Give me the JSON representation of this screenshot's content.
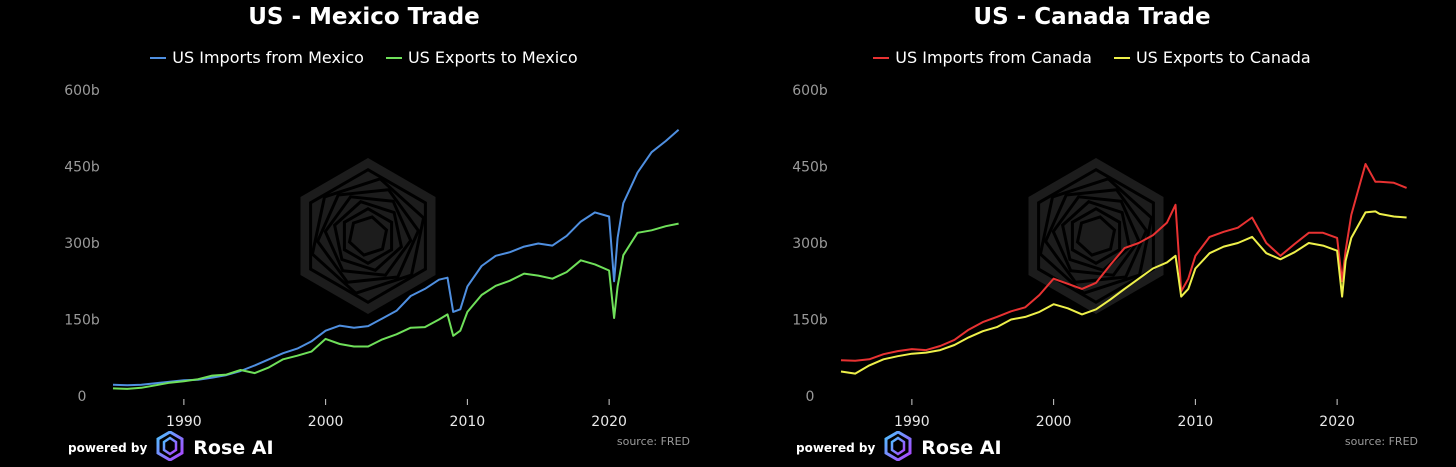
{
  "colors": {
    "mexico_imports": "#4f8fe0",
    "mexico_exports": "#6fe05a",
    "canada_imports": "#e83232",
    "canada_exports": "#eef04a",
    "watermark": "#1c1c1c"
  },
  "icons": {
    "watermark": "rose-ai-hexagon-logo",
    "brand": "rose-ai-logo-icon"
  },
  "footer": {
    "powered_by": "powered by",
    "brand": "Rose AI",
    "source": "source: FRED"
  },
  "chart_data": [
    {
      "type": "line",
      "title": "US - Mexico Trade",
      "xlim": [
        1985,
        2025
      ],
      "ylim": [
        0,
        600
      ],
      "y_ticks": [
        "0",
        "150b",
        "300b",
        "450b",
        "600b"
      ],
      "y_tick_values": [
        0,
        150,
        300,
        450,
        600
      ],
      "x_ticks": [
        "1990",
        "2000",
        "2010",
        "2020"
      ],
      "x_tick_values": [
        1990,
        2000,
        2010,
        2020
      ],
      "legend_position": "top-center",
      "grid": false,
      "series": [
        {
          "name": "US Imports from Mexico",
          "color_key": "mexico_imports",
          "points": [
            [
              1985,
              22
            ],
            [
              1986,
              21
            ],
            [
              1987,
              22
            ],
            [
              1988,
              25
            ],
            [
              1989,
              28
            ],
            [
              1990,
              31
            ],
            [
              1991,
              32
            ],
            [
              1992,
              36
            ],
            [
              1993,
              41
            ],
            [
              1994,
              49
            ],
            [
              1995,
              60
            ],
            [
              1996,
              72
            ],
            [
              1997,
              84
            ],
            [
              1998,
              93
            ],
            [
              1999,
              107
            ],
            [
              2000,
              128
            ],
            [
              2001,
              138
            ],
            [
              2002,
              134
            ],
            [
              2003,
              137
            ],
            [
              2004,
              152
            ],
            [
              2005,
              167
            ],
            [
              2006,
              196
            ],
            [
              2007,
              210
            ],
            [
              2008,
              228
            ],
            [
              2008.6,
              232
            ],
            [
              2009,
              165
            ],
            [
              2009.5,
              170
            ],
            [
              2010,
              215
            ],
            [
              2011,
              255
            ],
            [
              2012,
              275
            ],
            [
              2013,
              282
            ],
            [
              2014,
              293
            ],
            [
              2015,
              299
            ],
            [
              2016,
              295
            ],
            [
              2017,
              314
            ],
            [
              2018,
              342
            ],
            [
              2019,
              360
            ],
            [
              2020,
              352
            ],
            [
              2020.35,
              225
            ],
            [
              2020.6,
              310
            ],
            [
              2021,
              378
            ],
            [
              2022,
              438
            ],
            [
              2023,
              478
            ],
            [
              2024,
              500
            ],
            [
              2024.9,
              522
            ]
          ]
        },
        {
          "name": "US Exports to Mexico",
          "color_key": "mexico_exports",
          "points": [
            [
              1985,
              15
            ],
            [
              1986,
              14
            ],
            [
              1987,
              16
            ],
            [
              1988,
              21
            ],
            [
              1989,
              26
            ],
            [
              1990,
              29
            ],
            [
              1991,
              33
            ],
            [
              1992,
              40
            ],
            [
              1993,
              42
            ],
            [
              1994,
              51
            ],
            [
              1995,
              45
            ],
            [
              1996,
              56
            ],
            [
              1997,
              72
            ],
            [
              1998,
              79
            ],
            [
              1999,
              87
            ],
            [
              2000,
              112
            ],
            [
              2001,
              102
            ],
            [
              2002,
              97
            ],
            [
              2003,
              97
            ],
            [
              2004,
              111
            ],
            [
              2005,
              121
            ],
            [
              2006,
              134
            ],
            [
              2007,
              135
            ],
            [
              2008,
              150
            ],
            [
              2008.6,
              160
            ],
            [
              2009,
              118
            ],
            [
              2009.5,
              128
            ],
            [
              2010,
              165
            ],
            [
              2011,
              198
            ],
            [
              2012,
              216
            ],
            [
              2013,
              226
            ],
            [
              2014,
              240
            ],
            [
              2015,
              236
            ],
            [
              2016,
              230
            ],
            [
              2017,
              243
            ],
            [
              2018,
              266
            ],
            [
              2019,
              258
            ],
            [
              2020,
              246
            ],
            [
              2020.35,
              153
            ],
            [
              2020.6,
              215
            ],
            [
              2021,
              276
            ],
            [
              2022,
              320
            ],
            [
              2023,
              325
            ],
            [
              2024,
              333
            ],
            [
              2024.9,
              338
            ]
          ]
        }
      ]
    },
    {
      "type": "line",
      "title": "US - Canada Trade",
      "xlim": [
        1985,
        2025
      ],
      "ylim": [
        0,
        600
      ],
      "y_ticks": [
        "0",
        "150b",
        "300b",
        "450b",
        "600b"
      ],
      "y_tick_values": [
        0,
        150,
        300,
        450,
        600
      ],
      "x_ticks": [
        "1990",
        "2000",
        "2010",
        "2020"
      ],
      "x_tick_values": [
        1990,
        2000,
        2010,
        2020
      ],
      "legend_position": "top-center",
      "grid": false,
      "series": [
        {
          "name": "US Imports from Canada",
          "color_key": "canada_imports",
          "points": [
            [
              1985,
              70
            ],
            [
              1986,
              69
            ],
            [
              1987,
              72
            ],
            [
              1988,
              82
            ],
            [
              1989,
              88
            ],
            [
              1990,
              92
            ],
            [
              1991,
              90
            ],
            [
              1992,
              98
            ],
            [
              1993,
              110
            ],
            [
              1994,
              130
            ],
            [
              1995,
              145
            ],
            [
              1996,
              155
            ],
            [
              1997,
              166
            ],
            [
              1998,
              174
            ],
            [
              1999,
              198
            ],
            [
              2000,
              230
            ],
            [
              2001,
              220
            ],
            [
              2002,
              210
            ],
            [
              2003,
              222
            ],
            [
              2004,
              257
            ],
            [
              2005,
              290
            ],
            [
              2006,
              300
            ],
            [
              2007,
              315
            ],
            [
              2008,
              340
            ],
            [
              2008.6,
              375
            ],
            [
              2009,
              205
            ],
            [
              2009.5,
              230
            ],
            [
              2010,
              275
            ],
            [
              2011,
              312
            ],
            [
              2012,
              322
            ],
            [
              2013,
              330
            ],
            [
              2014,
              350
            ],
            [
              2015,
              300
            ],
            [
              2016,
              275
            ],
            [
              2017,
              298
            ],
            [
              2018,
              320
            ],
            [
              2019,
              320
            ],
            [
              2020,
              310
            ],
            [
              2020.35,
              225
            ],
            [
              2020.6,
              285
            ],
            [
              2021,
              355
            ],
            [
              2022,
              455
            ],
            [
              2022.7,
              420
            ],
            [
              2023,
              420
            ],
            [
              2024,
              418
            ],
            [
              2024.9,
              408
            ]
          ]
        },
        {
          "name": "US Exports to Canada",
          "color_key": "canada_exports",
          "points": [
            [
              1985,
              48
            ],
            [
              1986,
              44
            ],
            [
              1987,
              60
            ],
            [
              1988,
              72
            ],
            [
              1989,
              78
            ],
            [
              1990,
              83
            ],
            [
              1991,
              85
            ],
            [
              1992,
              90
            ],
            [
              1993,
              100
            ],
            [
              1994,
              115
            ],
            [
              1995,
              127
            ],
            [
              1996,
              135
            ],
            [
              1997,
              150
            ],
            [
              1998,
              155
            ],
            [
              1999,
              165
            ],
            [
              2000,
              180
            ],
            [
              2001,
              172
            ],
            [
              2002,
              160
            ],
            [
              2003,
              170
            ],
            [
              2004,
              189
            ],
            [
              2005,
              210
            ],
            [
              2006,
              230
            ],
            [
              2007,
              250
            ],
            [
              2008,
              262
            ],
            [
              2008.6,
              275
            ],
            [
              2009,
              195
            ],
            [
              2009.5,
              210
            ],
            [
              2010,
              250
            ],
            [
              2011,
              280
            ],
            [
              2012,
              293
            ],
            [
              2013,
              300
            ],
            [
              2014,
              312
            ],
            [
              2015,
              280
            ],
            [
              2016,
              268
            ],
            [
              2017,
              282
            ],
            [
              2018,
              300
            ],
            [
              2019,
              295
            ],
            [
              2020,
              285
            ],
            [
              2020.35,
              195
            ],
            [
              2020.6,
              265
            ],
            [
              2021,
              310
            ],
            [
              2022,
              360
            ],
            [
              2022.7,
              362
            ],
            [
              2023,
              357
            ],
            [
              2024,
              352
            ],
            [
              2024.9,
              350
            ]
          ]
        }
      ]
    }
  ]
}
